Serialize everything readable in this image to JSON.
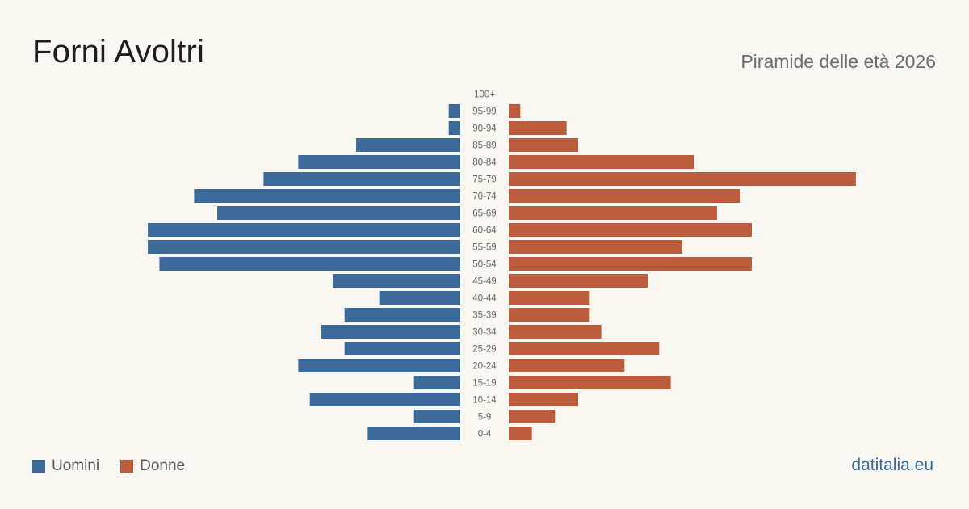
{
  "header": {
    "title": "Forni Avoltri",
    "subtitle": "Piramide delle età 2026"
  },
  "legend": {
    "men_label": "Uomini",
    "women_label": "Donne"
  },
  "footer": {
    "source": "datitalia.eu"
  },
  "colors": {
    "men": "#3b6a9b",
    "women": "#bb5c3c",
    "background": "#f9f7f2"
  },
  "chart_data": {
    "type": "bar",
    "orientation": "horizontal-pyramid",
    "categories": [
      "100+",
      "95-99",
      "90-94",
      "85-89",
      "80-84",
      "75-79",
      "70-74",
      "65-69",
      "60-64",
      "55-59",
      "50-54",
      "45-49",
      "40-44",
      "35-39",
      "30-34",
      "25-29",
      "20-24",
      "15-19",
      "10-14",
      "5-9",
      "0-4"
    ],
    "series": [
      {
        "name": "Uomini",
        "values": [
          0,
          1,
          1,
          9,
          14,
          17,
          23,
          21,
          27,
          27,
          26,
          11,
          7,
          10,
          12,
          10,
          14,
          4,
          13,
          4,
          8
        ]
      },
      {
        "name": "Donne",
        "values": [
          0,
          1,
          5,
          6,
          16,
          30,
          20,
          18,
          21,
          15,
          21,
          12,
          7,
          7,
          8,
          13,
          10,
          14,
          6,
          4,
          2
        ]
      }
    ]
  }
}
